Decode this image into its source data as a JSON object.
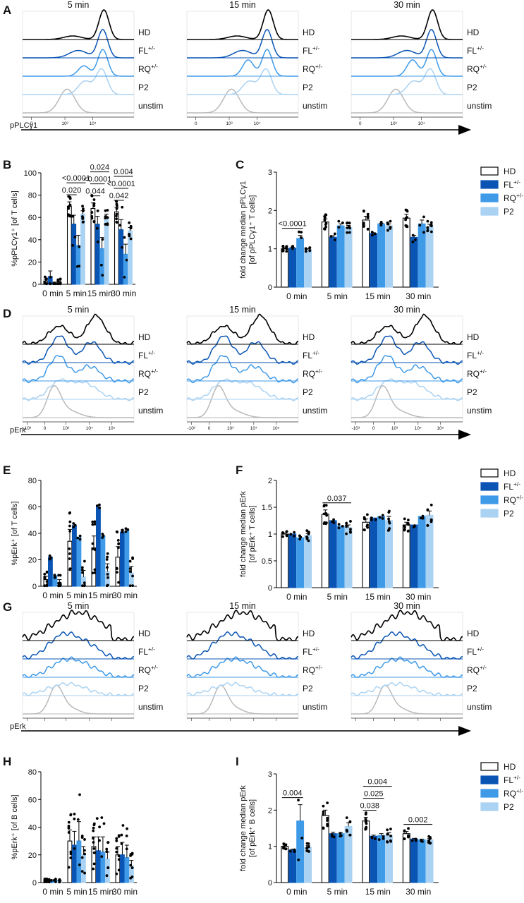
{
  "colors": {
    "HD": "#ffffff",
    "FL": "#0a55b4",
    "RQ": "#3f9ae8",
    "P2": "#aad2f2",
    "unstim": "#b9b9b9",
    "black": "#000000"
  },
  "panel_labels": [
    "A",
    "B",
    "C",
    "D",
    "E",
    "F",
    "G",
    "H",
    "I"
  ],
  "hist_times": [
    "5 min",
    "15 min",
    "30 min"
  ],
  "hist_rows": [
    {
      "base": "HD",
      "sup": ""
    },
    {
      "base": "FL",
      "sup": "+/-"
    },
    {
      "base": "RQ",
      "sup": "+/-"
    },
    {
      "base": "P2",
      "sup": ""
    },
    {
      "base": "unstim",
      "sup": ""
    }
  ],
  "hist_marker_A": "pPLCγ1",
  "hist_marker_D": "pErk",
  "hist_marker_G": "pErk",
  "hist_ticks_A": [
    "0",
    "10³",
    "10⁴"
  ],
  "hist_ticks_D": [
    "-10³",
    "0",
    "10³",
    "10⁴",
    "10⁵"
  ],
  "legend": [
    {
      "key": "HD",
      "base": "HD",
      "sup": ""
    },
    {
      "key": "FL",
      "base": "FL",
      "sup": "+/-"
    },
    {
      "key": "RQ",
      "base": "RQ",
      "sup": "+/-"
    },
    {
      "key": "P2",
      "base": "P2",
      "sup": ""
    }
  ],
  "chart_data": [
    {
      "panel": "B",
      "type": "bar",
      "categories": [
        "0 min",
        "5 min",
        "15 min",
        "30 min"
      ],
      "ylabel": "%pPLCγ1⁺ [of T cells]",
      "ylim": [
        0,
        100
      ],
      "yticks": [
        0,
        20,
        40,
        60,
        80,
        100
      ],
      "series": [
        {
          "name": "HD",
          "values": [
            3,
            70,
            68,
            65
          ]
        },
        {
          "name": "FL+/-",
          "values": [
            7,
            54,
            54,
            49
          ]
        },
        {
          "name": "RQ+/-",
          "values": [
            1,
            35,
            32,
            27
          ]
        },
        {
          "name": "P2",
          "values": [
            2,
            63,
            60,
            48
          ]
        }
      ],
      "errors": [
        [
          1.5,
          4,
          5,
          4
        ],
        [
          5,
          8,
          7,
          9
        ],
        [
          1,
          9,
          10,
          9
        ],
        [
          1.2,
          3,
          3,
          3
        ]
      ],
      "annotations": [
        {
          "text": "<0.0001",
          "cat": 1,
          "from": 0,
          "to": 3,
          "row": 1
        },
        {
          "text": "0.020",
          "cat": 1,
          "from": 0,
          "to": 1,
          "row": 0
        },
        {
          "text": "0.024",
          "cat": 2,
          "from": 0,
          "to": 3,
          "row": 2
        },
        {
          "text": "<0.0001",
          "cat": 2,
          "from": 0,
          "to": 2,
          "row": 1
        },
        {
          "text": "0.044",
          "cat": 2,
          "from": 0,
          "to": 1,
          "row": 0
        },
        {
          "text": "0.004",
          "cat": 3,
          "from": 0,
          "to": 3,
          "row": 2
        },
        {
          "text": "<0.0001",
          "cat": 3,
          "from": 0,
          "to": 2,
          "row": 1
        },
        {
          "text": "0.042",
          "cat": 3,
          "from": 0,
          "to": 1,
          "row": 0
        }
      ]
    },
    {
      "panel": "C",
      "type": "bar",
      "categories": [
        "0 min",
        "5 min",
        "15 min",
        "30 min"
      ],
      "ylabel": "fold change median pPLCγ1 [of pPLCγ1⁺ T cells]",
      "ylim": [
        0,
        3
      ],
      "yticks": [
        0,
        1,
        2,
        3
      ],
      "series": [
        {
          "name": "HD",
          "values": [
            1.0,
            1.7,
            1.75,
            1.8
          ]
        },
        {
          "name": "FL+/-",
          "values": [
            1.02,
            1.3,
            1.4,
            1.3
          ]
        },
        {
          "name": "RQ+/-",
          "values": [
            1.27,
            1.6,
            1.65,
            1.65
          ]
        },
        {
          "name": "P2",
          "values": [
            0.98,
            1.55,
            1.6,
            1.58
          ]
        }
      ],
      "errors": [
        [
          0.03,
          0.08,
          0.1,
          0.1
        ],
        [
          0.02,
          0.04,
          0.02,
          0.05
        ],
        [
          0.08,
          0.05,
          0.02,
          0.1
        ],
        [
          0.02,
          0.06,
          0.05,
          0.06
        ]
      ],
      "annotations": [
        {
          "text": "<0.0001",
          "cat": 0,
          "from": 0,
          "to": 2,
          "row": 0
        }
      ]
    },
    {
      "panel": "E",
      "type": "bar",
      "categories": [
        "0 min",
        "5 min",
        "15 min",
        "30 min"
      ],
      "ylabel": "%pErk⁺ [of T cells]",
      "ylim": [
        0,
        80
      ],
      "yticks": [
        0,
        20,
        40,
        60,
        80
      ],
      "series": [
        {
          "name": "HD",
          "values": [
            5,
            34,
            29,
            22
          ]
        },
        {
          "name": "FL+/-",
          "values": [
            22,
            46,
            60,
            41
          ]
        },
        {
          "name": "RQ+/-",
          "values": [
            8,
            37,
            38,
            42
          ]
        },
        {
          "name": "P2",
          "values": [
            2,
            7,
            11,
            10
          ]
        }
      ],
      "errors": [
        [
          2.5,
          9,
          9,
          8
        ],
        [
          0,
          0,
          0,
          0
        ],
        [
          0,
          0,
          0,
          0
        ],
        [
          3,
          5,
          6,
          5
        ]
      ],
      "annotations": []
    },
    {
      "panel": "F",
      "type": "bar",
      "categories": [
        "0 min",
        "5 min",
        "15 min",
        "30 min"
      ],
      "ylabel": "fold change median pErk [of pErk⁺ T cells]",
      "ylim": [
        0,
        2
      ],
      "yticks": [
        0.0,
        0.5,
        1.0,
        1.5,
        2.0
      ],
      "series": [
        {
          "name": "HD",
          "values": [
            1.0,
            1.37,
            1.22,
            1.17
          ]
        },
        {
          "name": "FL+/-",
          "values": [
            1.0,
            1.25,
            1.3,
            1.17
          ]
        },
        {
          "name": "RQ+/-",
          "values": [
            0.93,
            1.15,
            1.33,
            1.33
          ]
        },
        {
          "name": "P2",
          "values": [
            0.97,
            1.12,
            1.25,
            1.35
          ]
        }
      ],
      "errors": [
        [
          0.02,
          0.08,
          0.06,
          0.05
        ],
        [
          0,
          0,
          0,
          0
        ],
        [
          0,
          0,
          0,
          0
        ],
        [
          0.04,
          0.05,
          0.08,
          0.08
        ]
      ],
      "annotations": [
        {
          "text": "0.037",
          "cat": 1,
          "from": 0,
          "to": 3,
          "row": 0
        }
      ]
    },
    {
      "panel": "H",
      "type": "bar",
      "categories": [
        "0 min",
        "5 min",
        "15 min",
        "30 min"
      ],
      "ylabel": "%pErk⁺ [of B cells]",
      "ylim": [
        0,
        80
      ],
      "yticks": [
        0,
        20,
        40,
        60,
        80
      ],
      "series": [
        {
          "name": "HD",
          "values": [
            1.5,
            30,
            26,
            20
          ]
        },
        {
          "name": "FL+/-",
          "values": [
            1,
            27,
            23,
            20
          ]
        },
        {
          "name": "RQ+/-",
          "values": [
            1.5,
            30,
            22,
            18
          ]
        },
        {
          "name": "P2",
          "values": [
            1,
            20,
            17,
            12
          ]
        }
      ],
      "errors": [
        [
          0.5,
          8,
          7,
          6
        ],
        [
          0.5,
          10,
          10,
          9
        ],
        [
          0.5,
          14,
          11,
          9
        ],
        [
          0.5,
          6,
          5,
          4
        ]
      ],
      "annotations": []
    },
    {
      "panel": "I",
      "type": "bar",
      "categories": [
        "0 min",
        "5 min",
        "15 min",
        "30 min"
      ],
      "ylabel": "fold change median pErk [of pErk⁺ B cells]",
      "ylim": [
        0,
        3
      ],
      "yticks": [
        0,
        1,
        2,
        3
      ],
      "series": [
        {
          "name": "HD",
          "values": [
            1.0,
            1.85,
            1.7,
            1.35
          ]
        },
        {
          "name": "FL+/-",
          "values": [
            0.9,
            1.35,
            1.28,
            1.2
          ]
        },
        {
          "name": "RQ+/-",
          "values": [
            1.7,
            1.35,
            1.3,
            1.18
          ]
        },
        {
          "name": "P2",
          "values": [
            0.97,
            1.55,
            1.3,
            1.18
          ]
        }
      ],
      "errors": [
        [
          0.03,
          0.15,
          0.1,
          0.06
        ],
        [
          0.02,
          0.04,
          0.03,
          0.02
        ],
        [
          0.45,
          0.03,
          0.05,
          0.02
        ],
        [
          0.05,
          0.1,
          0.08,
          0.04
        ]
      ],
      "annotations": [
        {
          "text": "0.004",
          "cat": 0,
          "from": 0,
          "to": 2,
          "row": 0
        },
        {
          "text": "0.004",
          "cat": 2,
          "from": 0,
          "to": 3,
          "row": 2
        },
        {
          "text": "0.025",
          "cat": 2,
          "from": 0,
          "to": 2,
          "row": 1
        },
        {
          "text": "0.038",
          "cat": 2,
          "from": 0,
          "to": 1,
          "row": 0
        },
        {
          "text": "0.002",
          "cat": 3,
          "from": 0,
          "to": 3,
          "row": 0
        }
      ]
    }
  ]
}
